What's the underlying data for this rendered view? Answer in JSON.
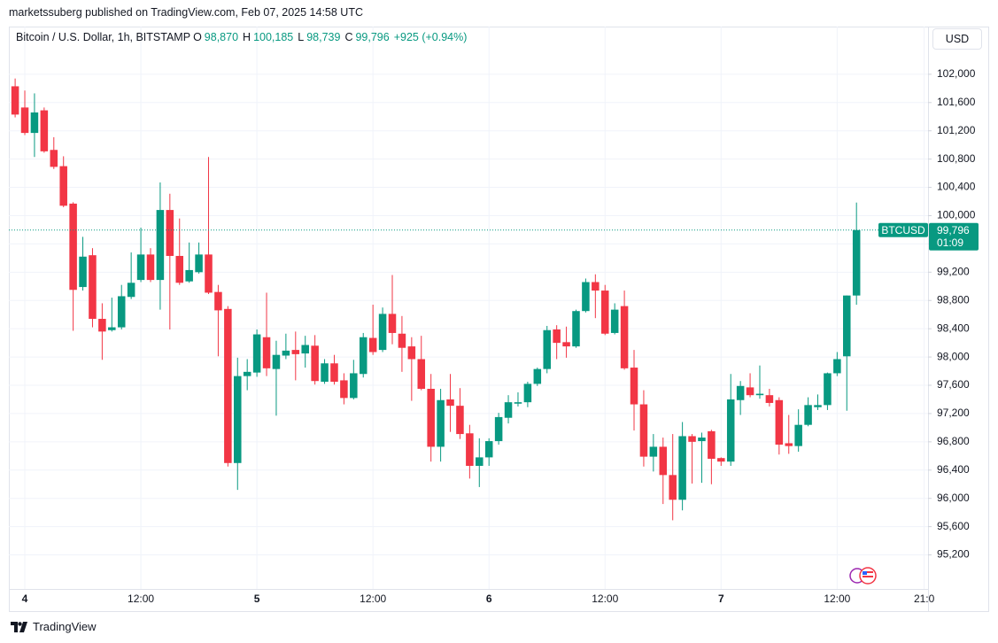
{
  "header": {
    "publisher": "marketssuberg published on TradingView.com, Feb 07, 2025 14:58 UTC",
    "currency": "USD",
    "brand": "TradingView"
  },
  "chart_data": {
    "type": "candlestick",
    "legend": {
      "symbol": "Bitcoin / U.S. Dollar, 1h, BITSTAMP",
      "items": [
        {
          "key": "O",
          "value": "98,870"
        },
        {
          "key": "H",
          "value": "100,185"
        },
        {
          "key": "L",
          "value": "98,739"
        },
        {
          "key": "C",
          "value": "99,796"
        }
      ],
      "change": "+925 (+0.94%)"
    },
    "up_color": "#089981",
    "down_color": "#f23645",
    "grid": true,
    "x": [
      -1,
      0,
      1,
      2,
      3,
      4,
      5,
      6,
      7,
      8,
      9,
      10,
      11,
      12,
      13,
      14,
      15,
      16,
      17,
      18,
      19,
      20,
      21,
      22,
      23,
      24,
      25,
      26,
      27,
      28,
      29,
      30,
      31,
      32,
      33,
      34,
      35,
      36,
      37,
      38,
      39,
      40,
      41,
      42,
      43,
      44,
      45,
      46,
      47,
      48,
      49,
      50,
      51,
      52,
      53,
      54,
      55,
      56,
      57,
      58,
      59,
      60,
      61,
      62,
      63,
      64,
      65,
      66,
      67,
      68,
      69,
      70,
      71,
      72,
      73,
      74,
      75,
      76,
      77,
      78,
      79,
      80,
      81,
      82,
      83,
      84,
      85,
      86
    ],
    "open": [
      101830,
      101530,
      101170,
      101490,
      100930,
      100700,
      100170,
      98990,
      99440,
      98540,
      98380,
      98420,
      98850,
      99090,
      99450,
      99090,
      100080,
      99430,
      99070,
      99200,
      99450,
      98920,
      98680,
      96500,
      97730,
      97780,
      98280,
      97830,
      98020,
      98100,
      98050,
      98160,
      97650,
      97910,
      97670,
      97420,
      97760,
      98270,
      98100,
      98610,
      98330,
      98150,
      97970,
      97550,
      96730,
      97400,
      97310,
      96920,
      96460,
      96580,
      96810,
      97140,
      97340,
      97360,
      97620,
      97830,
      98390,
      98210,
      98150,
      98650,
      99060,
      98940,
      98340,
      98720,
      97850,
      97330,
      96590,
      96730,
      96330,
      95980,
      96880,
      96810,
      96950,
      96570,
      96520,
      97390,
      97570,
      97460,
      97460,
      97390,
      96780,
      96740,
      97040,
      97290,
      97320,
      97770,
      98010,
      98870
    ],
    "high": [
      101940,
      101770,
      101730,
      101530,
      101110,
      100840,
      100190,
      99700,
      99540,
      98760,
      98840,
      99020,
      99480,
      99830,
      99540,
      100470,
      100310,
      99960,
      99620,
      99620,
      100830,
      99020,
      98720,
      97990,
      97970,
      98390,
      98910,
      98230,
      98330,
      98360,
      98300,
      98310,
      97970,
      98030,
      97770,
      97960,
      98340,
      98740,
      98700,
      99160,
      98580,
      98280,
      98300,
      97760,
      97550,
      97760,
      97560,
      97040,
      96850,
      96850,
      97210,
      97460,
      97500,
      97650,
      97850,
      98440,
      98450,
      98430,
      98670,
      99110,
      99170,
      99020,
      98760,
      98940,
      98100,
      97530,
      96910,
      96860,
      96910,
      97080,
      96910,
      96930,
      96970,
      96580,
      97760,
      97660,
      97770,
      97880,
      97550,
      97430,
      97180,
      97260,
      97430,
      97470,
      97780,
      98070,
      98870,
      100185
    ],
    "low": [
      101390,
      101140,
      100830,
      100890,
      100660,
      100120,
      98370,
      98940,
      98420,
      97960,
      98360,
      98390,
      98820,
      99060,
      99060,
      98670,
      98390,
      99020,
      99050,
      99180,
      98890,
      98010,
      96450,
      96120,
      97530,
      97720,
      97730,
      97170,
      97970,
      97670,
      97850,
      97610,
      97620,
      97610,
      97330,
      97400,
      97710,
      98030,
      98070,
      98180,
      97790,
      97380,
      97530,
      96520,
      96520,
      96940,
      96840,
      96280,
      96160,
      96460,
      96760,
      97060,
      97300,
      97290,
      97590,
      97770,
      97970,
      97990,
      98130,
      98630,
      98550,
      98310,
      98320,
      97820,
      96960,
      96450,
      96380,
      95920,
      95690,
      95830,
      96210,
      96220,
      96200,
      96460,
      96460,
      97180,
      97430,
      97410,
      97300,
      96620,
      96630,
      96660,
      97020,
      97250,
      97250,
      97730,
      97240,
      98739
    ],
    "close": [
      101430,
      101170,
      101460,
      100910,
      100690,
      100140,
      98950,
      99420,
      98540,
      98360,
      98420,
      98860,
      99050,
      99450,
      99090,
      100080,
      99430,
      99050,
      99230,
      99450,
      98910,
      98660,
      96500,
      97730,
      97790,
      98320,
      97840,
      98030,
      98090,
      98040,
      98170,
      97660,
      97910,
      97650,
      97420,
      97770,
      98280,
      98070,
      98610,
      98340,
      98130,
      97970,
      97550,
      96730,
      97390,
      97310,
      96910,
      96460,
      96580,
      96810,
      97150,
      97360,
      97360,
      97620,
      97830,
      98380,
      98200,
      98150,
      98650,
      99060,
      98940,
      98330,
      98670,
      97840,
      97330,
      96590,
      96730,
      96330,
      95980,
      96880,
      96800,
      96860,
      96560,
      96520,
      97400,
      97590,
      97460,
      97480,
      97350,
      96760,
      96740,
      97040,
      97320,
      97320,
      97770,
      97970,
      98870,
      99796
    ],
    "xlim": [
      -1.65,
      93.4
    ],
    "xticks": [
      {
        "value": 0,
        "label": "4"
      },
      {
        "value": 12,
        "label": "12:00"
      },
      {
        "value": 24,
        "label": "5"
      },
      {
        "value": 36,
        "label": "12:00"
      },
      {
        "value": 48,
        "label": "6"
      },
      {
        "value": 60,
        "label": "12:00"
      },
      {
        "value": 72,
        "label": "7"
      },
      {
        "value": 84,
        "label": "12:00"
      },
      {
        "value": 93,
        "label": "21:0"
      }
    ],
    "ylim": [
      94718,
      102675
    ],
    "yticks": [
      {
        "value": 95200,
        "label": "95,200"
      },
      {
        "value": 95600,
        "label": "95,600"
      },
      {
        "value": 96000,
        "label": "96,000"
      },
      {
        "value": 96400,
        "label": "96,400"
      },
      {
        "value": 96800,
        "label": "96,800"
      },
      {
        "value": 97200,
        "label": "97,200"
      },
      {
        "value": 97600,
        "label": "97,600"
      },
      {
        "value": 98000,
        "label": "98,000"
      },
      {
        "value": 98400,
        "label": "98,400"
      },
      {
        "value": 98800,
        "label": "98,800"
      },
      {
        "value": 99200,
        "label": "99,200"
      },
      {
        "value": 99600,
        "label": "99,600"
      },
      {
        "value": 100000,
        "label": "100,000"
      },
      {
        "value": 100400,
        "label": "100,400"
      },
      {
        "value": 100800,
        "label": "100,800"
      },
      {
        "value": 101200,
        "label": "101,200"
      },
      {
        "value": 101600,
        "label": "101,600"
      },
      {
        "value": 102000,
        "label": "102,000"
      }
    ],
    "last_price": {
      "symbol": "BTCUSD",
      "value": 99796,
      "value_label": "99,796",
      "countdown": "01:09"
    }
  }
}
